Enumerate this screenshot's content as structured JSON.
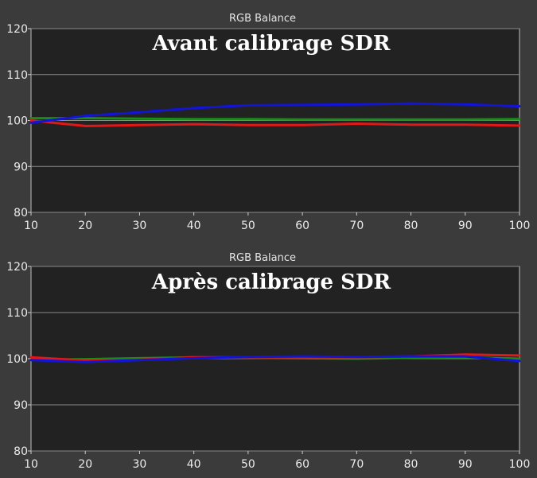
{
  "chart_data": [
    {
      "type": "line",
      "title": "RGB Balance",
      "overlay_title": "Avant calibrage SDR",
      "xlabel": "",
      "ylabel": "",
      "x": [
        10,
        20,
        30,
        40,
        50,
        60,
        70,
        80,
        90,
        100
      ],
      "xlim": [
        10,
        100
      ],
      "ylim": [
        80,
        120
      ],
      "xticks": [
        10,
        20,
        30,
        40,
        50,
        60,
        70,
        80,
        90,
        100
      ],
      "yticks": [
        80,
        90,
        100,
        110,
        120
      ],
      "grid": true,
      "series": [
        {
          "color": "#1a8c1a",
          "values": [
            100.5,
            100.5,
            100.4,
            100.3,
            100.3,
            100.2,
            100.2,
            100.2,
            100.2,
            100.3
          ]
        },
        {
          "color": "#e01818",
          "values": [
            100.0,
            98.8,
            99.0,
            99.2,
            99.0,
            99.0,
            99.3,
            99.1,
            99.1,
            98.9
          ]
        },
        {
          "color": "#1414d8",
          "values": [
            99.5,
            101.0,
            101.8,
            102.7,
            103.3,
            103.4,
            103.5,
            103.7,
            103.5,
            103.1
          ]
        }
      ]
    },
    {
      "type": "line",
      "title": "RGB Balance",
      "overlay_title": "Après calibrage SDR",
      "xlabel": "",
      "ylabel": "",
      "x": [
        10,
        20,
        30,
        40,
        50,
        60,
        70,
        80,
        90,
        100
      ],
      "xlim": [
        10,
        100
      ],
      "ylim": [
        80,
        120
      ],
      "xticks": [
        10,
        20,
        30,
        40,
        50,
        60,
        70,
        80,
        90,
        100
      ],
      "yticks": [
        80,
        90,
        100,
        110,
        120
      ],
      "grid": true,
      "series": [
        {
          "color": "#1a8c1a",
          "values": [
            99.8,
            99.9,
            100.1,
            100.3,
            100.2,
            100.1,
            100.0,
            100.2,
            100.3,
            100.0
          ]
        },
        {
          "color": "#e01818",
          "values": [
            100.3,
            99.6,
            99.8,
            100.3,
            100.3,
            100.3,
            100.3,
            100.5,
            100.9,
            100.7
          ]
        },
        {
          "color": "#1414d8",
          "values": [
            99.7,
            99.3,
            99.7,
            100.1,
            100.4,
            100.5,
            100.4,
            100.5,
            100.5,
            99.5
          ]
        }
      ]
    }
  ]
}
